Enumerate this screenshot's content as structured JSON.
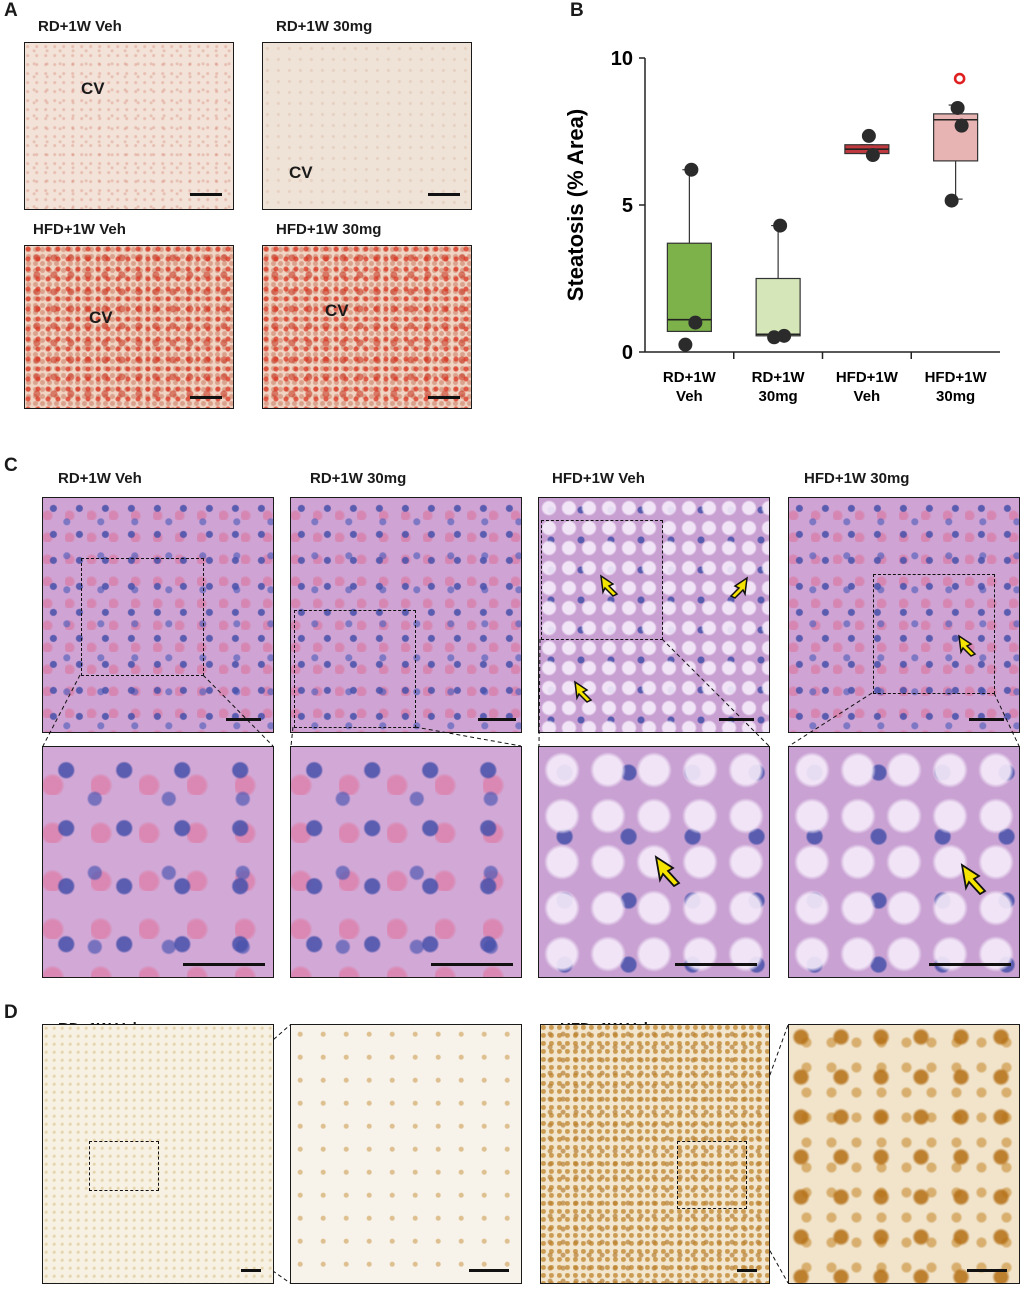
{
  "panels": {
    "a": {
      "letter": "A",
      "images": [
        {
          "label": "RD+1W Veh",
          "cv": "CV"
        },
        {
          "label": "RD+1W 30mg",
          "cv": "CV"
        },
        {
          "label": "HFD+1W Veh",
          "cv": "CV"
        },
        {
          "label": "HFD+1W 30mg",
          "cv": "CV"
        }
      ]
    },
    "b": {
      "letter": "B"
    },
    "c": {
      "letter": "C",
      "labels": [
        "RD+1W Veh",
        "RD+1W 30mg",
        "HFD+1W Veh",
        "HFD+1W 30mg"
      ]
    },
    "d": {
      "letter": "D",
      "labels": [
        "RD+1W Veh",
        "HFD+1W Veh"
      ]
    }
  },
  "chart_data": {
    "type": "box",
    "ylabel": "Steatosis (% Area)",
    "ylim": [
      0,
      10
    ],
    "yticks": [
      "0",
      "5",
      "10"
    ],
    "categories": [
      [
        "RD+1W",
        "Veh"
      ],
      [
        "RD+1W",
        "30mg"
      ],
      [
        "HFD+1W",
        "Veh"
      ],
      [
        "HFD+1W",
        "30mg"
      ]
    ],
    "boxes": [
      {
        "q1": 0.7,
        "median": 1.1,
        "q3": 3.7,
        "whisker_low": 0.7,
        "whisker_high": 6.2,
        "points": [
          6.2,
          1.0,
          0.25
        ],
        "outliers": [],
        "color": "#7db24a"
      },
      {
        "q1": 0.55,
        "median": 0.6,
        "q3": 2.5,
        "whisker_low": 0.55,
        "whisker_high": 4.3,
        "points": [
          4.3,
          0.55,
          0.5
        ],
        "outliers": [],
        "color": "#d5e6b8"
      },
      {
        "q1": 6.75,
        "median": 6.9,
        "q3": 7.05,
        "whisker_low": 6.75,
        "whisker_high": 7.05,
        "points": [
          7.35,
          6.7
        ],
        "outliers": [],
        "color": "#c0393e"
      },
      {
        "q1": 6.5,
        "median": 7.9,
        "q3": 8.1,
        "whisker_low": 5.2,
        "whisker_high": 8.4,
        "points": [
          8.3,
          7.7,
          5.15
        ],
        "outliers": [
          9.3
        ],
        "color": "#e8b3b3"
      }
    ],
    "outlier_color": "#e02020",
    "grid": false,
    "legend": "none"
  }
}
